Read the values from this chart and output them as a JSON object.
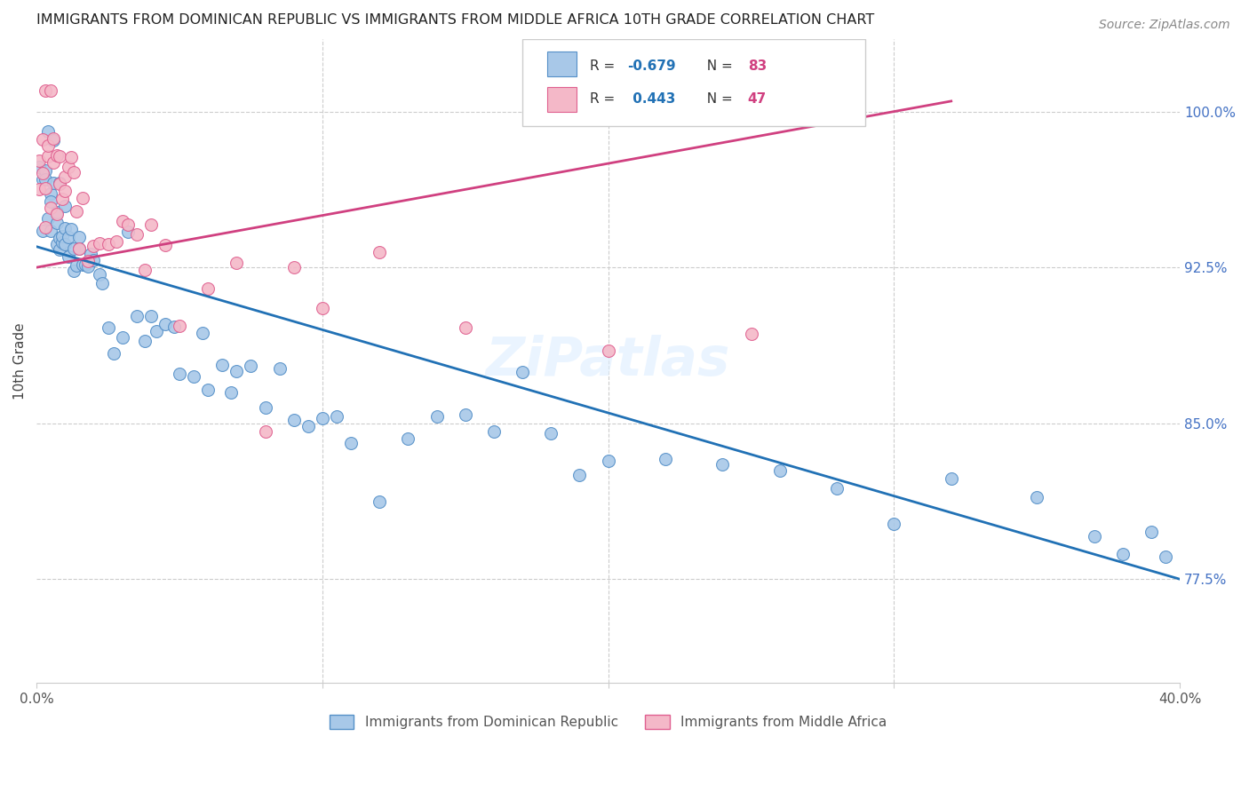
{
  "title": "IMMIGRANTS FROM DOMINICAN REPUBLIC VS IMMIGRANTS FROM MIDDLE AFRICA 10TH GRADE CORRELATION CHART",
  "source": "Source: ZipAtlas.com",
  "ylabel": "10th Grade",
  "right_yticks": [
    "100.0%",
    "92.5%",
    "85.0%",
    "77.5%"
  ],
  "right_ytick_vals": [
    1.0,
    0.925,
    0.85,
    0.775
  ],
  "blue_color": "#a8c8e8",
  "pink_color": "#f4b8c8",
  "blue_edge_color": "#5590c8",
  "pink_edge_color": "#e06090",
  "blue_line_color": "#2171b5",
  "pink_line_color": "#d04080",
  "right_axis_color": "#4472c4",
  "watermark": "ZiPatlas",
  "xlim": [
    0.0,
    0.4
  ],
  "ylim": [
    0.725,
    1.035
  ],
  "blue_line_x0": 0.0,
  "blue_line_y0": 0.935,
  "blue_line_x1": 0.4,
  "blue_line_y1": 0.775,
  "pink_line_x0": 0.0,
  "pink_line_y0": 0.925,
  "pink_line_x1": 0.32,
  "pink_line_y1": 1.005,
  "blue_x": [
    0.001,
    0.002,
    0.002,
    0.003,
    0.003,
    0.004,
    0.004,
    0.005,
    0.005,
    0.005,
    0.006,
    0.006,
    0.007,
    0.007,
    0.007,
    0.008,
    0.008,
    0.008,
    0.009,
    0.009,
    0.01,
    0.01,
    0.01,
    0.011,
    0.011,
    0.012,
    0.013,
    0.013,
    0.014,
    0.015,
    0.015,
    0.016,
    0.017,
    0.018,
    0.019,
    0.02,
    0.022,
    0.023,
    0.025,
    0.027,
    0.03,
    0.032,
    0.035,
    0.038,
    0.04,
    0.042,
    0.045,
    0.048,
    0.05,
    0.055,
    0.058,
    0.06,
    0.065,
    0.068,
    0.07,
    0.075,
    0.08,
    0.085,
    0.09,
    0.095,
    0.1,
    0.105,
    0.11,
    0.12,
    0.13,
    0.14,
    0.15,
    0.16,
    0.17,
    0.18,
    0.19,
    0.2,
    0.22,
    0.24,
    0.26,
    0.28,
    0.3,
    0.32,
    0.35,
    0.37,
    0.38,
    0.39,
    0.395
  ],
  "blue_y": [
    0.97,
    0.965,
    0.96,
    0.958,
    0.955,
    0.968,
    0.95,
    0.965,
    0.955,
    0.948,
    0.96,
    0.952,
    0.958,
    0.948,
    0.945,
    0.955,
    0.95,
    0.945,
    0.95,
    0.943,
    0.948,
    0.942,
    0.938,
    0.945,
    0.94,
    0.942,
    0.938,
    0.932,
    0.935,
    0.93,
    0.928,
    0.928,
    0.925,
    0.922,
    0.92,
    0.918,
    0.915,
    0.912,
    0.91,
    0.908,
    0.905,
    0.902,
    0.9,
    0.898,
    0.895,
    0.893,
    0.89,
    0.888,
    0.885,
    0.882,
    0.88,
    0.878,
    0.875,
    0.872,
    0.87,
    0.868,
    0.865,
    0.862,
    0.86,
    0.858,
    0.855,
    0.852,
    0.85,
    0.848,
    0.852,
    0.85,
    0.848,
    0.845,
    0.842,
    0.838,
    0.835,
    0.832,
    0.828,
    0.822,
    0.818,
    0.812,
    0.808,
    0.805,
    0.8,
    0.795,
    0.792,
    0.788,
    0.785
  ],
  "pink_x": [
    0.001,
    0.001,
    0.002,
    0.002,
    0.003,
    0.003,
    0.003,
    0.004,
    0.004,
    0.005,
    0.005,
    0.006,
    0.006,
    0.007,
    0.007,
    0.008,
    0.008,
    0.009,
    0.01,
    0.01,
    0.011,
    0.012,
    0.013,
    0.014,
    0.015,
    0.016,
    0.018,
    0.02,
    0.022,
    0.025,
    0.028,
    0.03,
    0.032,
    0.035,
    0.038,
    0.04,
    0.045,
    0.05,
    0.06,
    0.07,
    0.08,
    0.09,
    0.1,
    0.12,
    0.15,
    0.2,
    0.25
  ],
  "pink_y": [
    0.975,
    0.965,
    0.972,
    0.96,
    0.985,
    0.998,
    0.97,
    0.99,
    0.978,
    0.982,
    0.968,
    0.975,
    0.962,
    0.972,
    0.958,
    0.968,
    0.952,
    0.96,
    0.965,
    0.955,
    0.962,
    0.958,
    0.95,
    0.955,
    0.948,
    0.952,
    0.945,
    0.948,
    0.942,
    0.95,
    0.945,
    0.94,
    0.938,
    0.935,
    0.932,
    0.93,
    0.925,
    0.922,
    0.918,
    0.915,
    0.85,
    0.912,
    0.905,
    0.902,
    0.898,
    0.895,
    0.892
  ]
}
